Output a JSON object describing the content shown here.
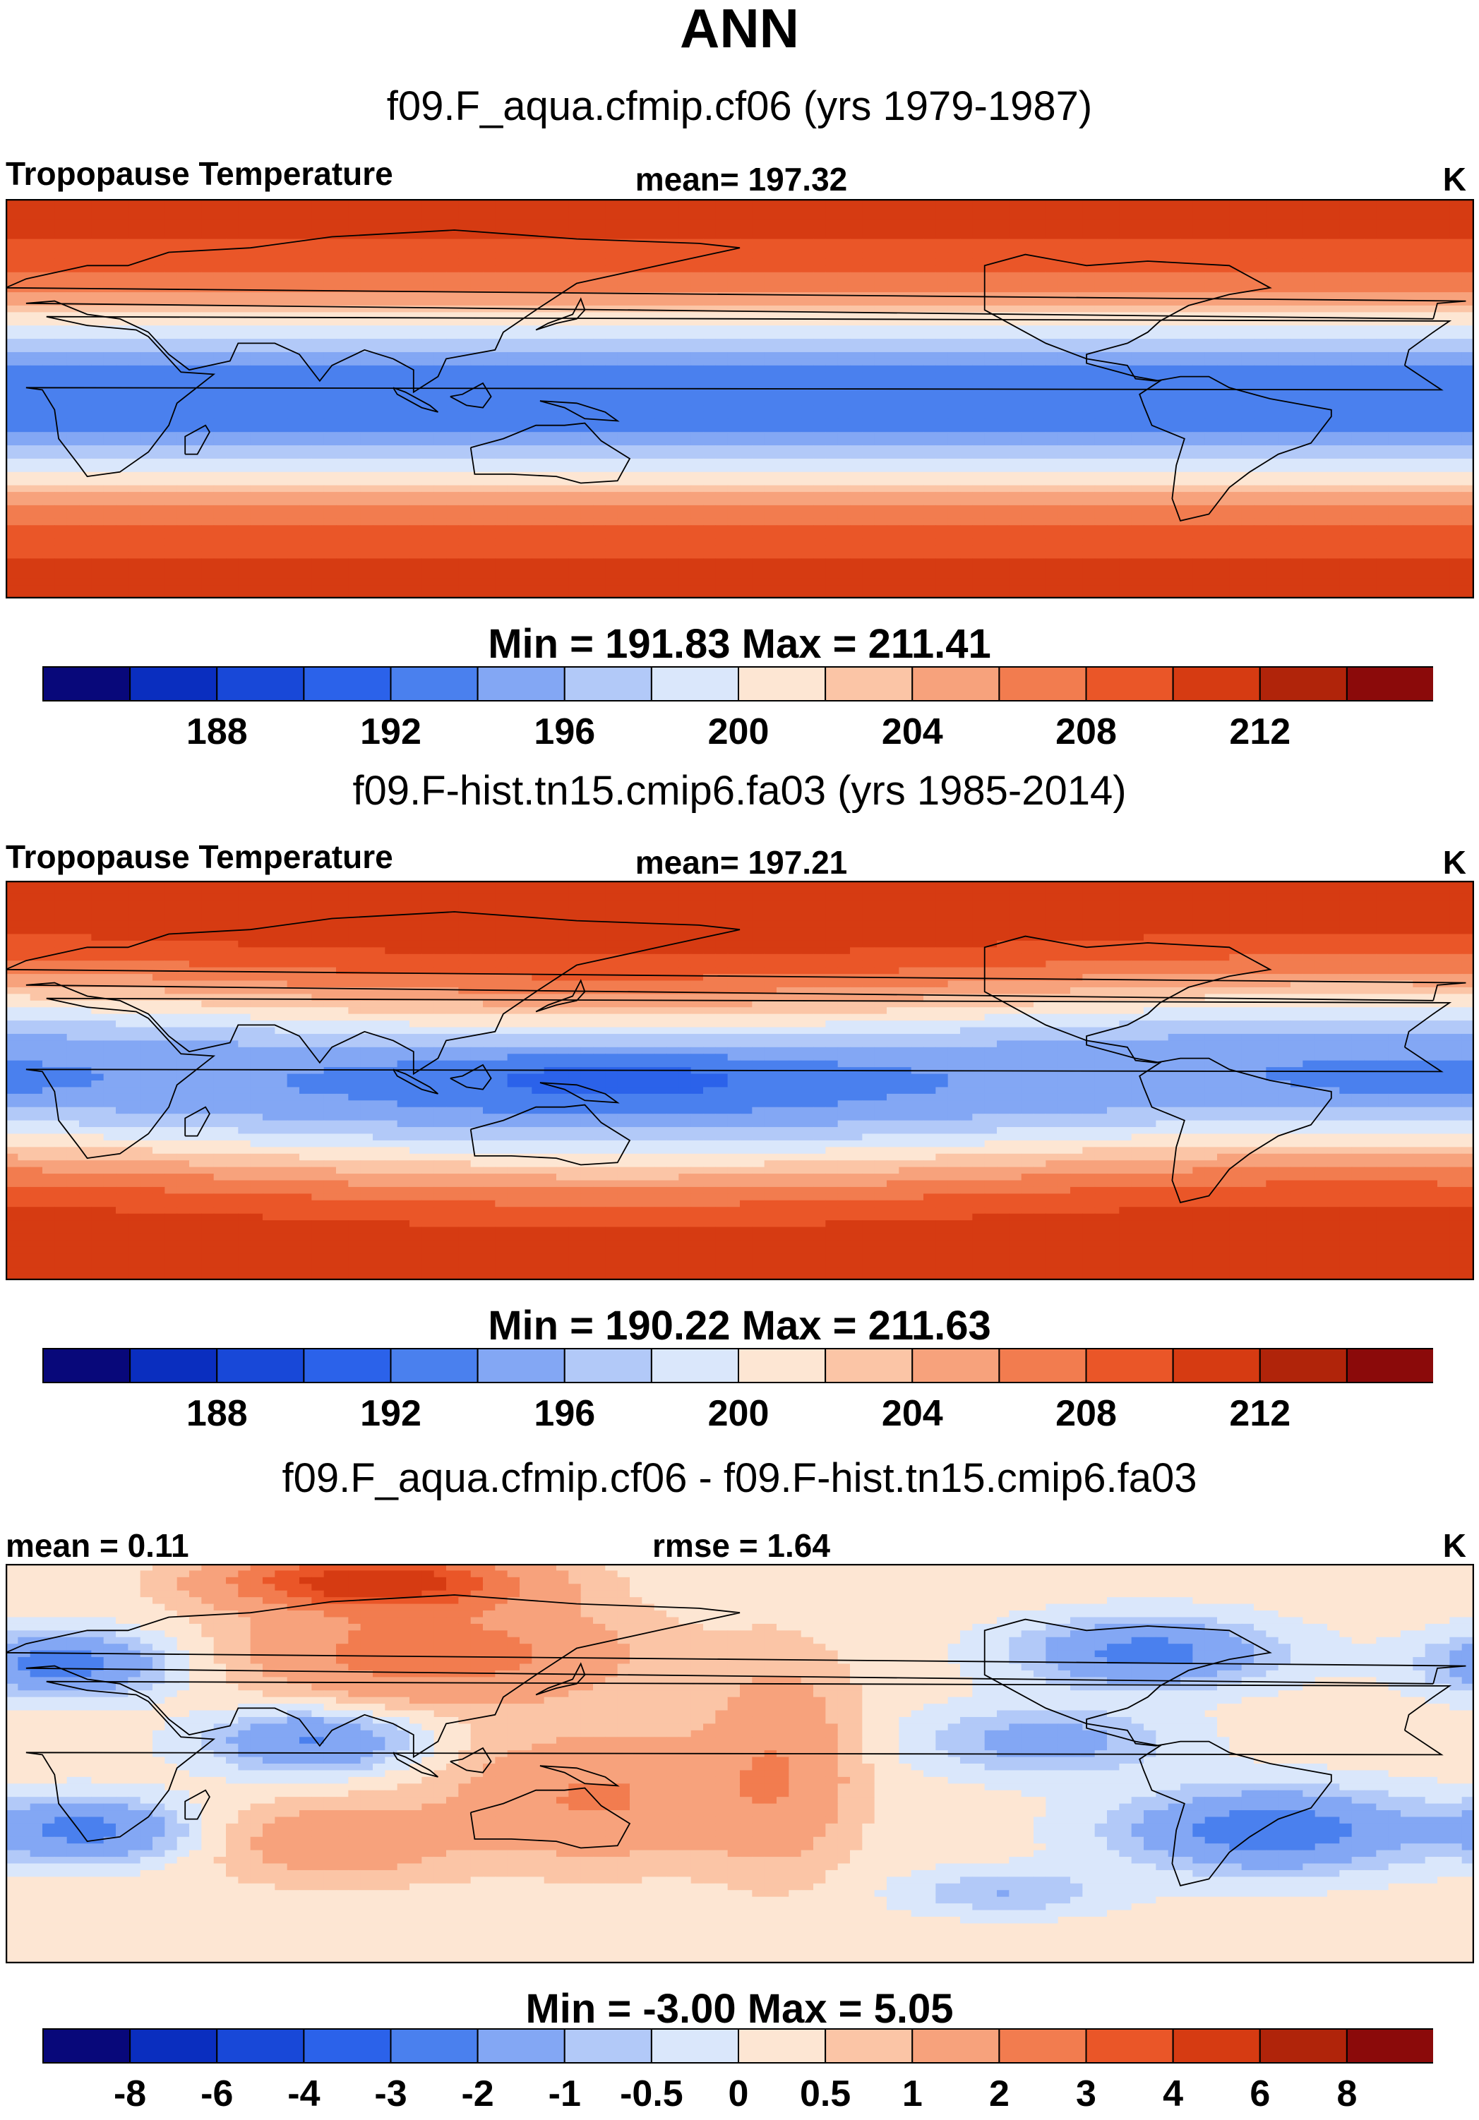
{
  "figure": {
    "title": "ANN",
    "units": "K"
  },
  "palette": [
    "#08087a",
    "#0a2ebf",
    "#1848d8",
    "#2b62ea",
    "#4a80ee",
    "#83a7f4",
    "#b2c9f8",
    "#dae7fb",
    "#fde6d3",
    "#fbc5a6",
    "#f7a27c",
    "#f27c4f",
    "#ea5628",
    "#d63b12",
    "#b0240a",
    "#8b0a0a"
  ],
  "land_outline": "continent-outline",
  "chart_data": [
    {
      "type": "heatmap",
      "case": "f09.F_aqua.cfmip.cf06 (yrs 1979-1987)",
      "variable": "Tropopause Temperature",
      "mean_label": "mean= 197.32",
      "units": "K",
      "min_max": "Min = 191.83 Max = 211.41",
      "min": 191.83,
      "max": 211.41,
      "mean": 197.32,
      "lon_range": [
        0,
        360
      ],
      "lat_range": [
        -90,
        90
      ],
      "colorbar_levels": [
        "188",
        "192",
        "196",
        "200",
        "204",
        "208",
        "212"
      ],
      "colorbar_level_values": [
        186,
        188,
        190,
        192,
        194,
        196,
        198,
        200,
        202,
        204,
        206,
        208,
        210,
        212,
        214
      ],
      "field": "zonal"
    },
    {
      "type": "heatmap",
      "case": "f09.F-hist.tn15.cmip6.fa03 (yrs 1985-2014)",
      "variable": "Tropopause Temperature",
      "mean_label": "mean= 197.21",
      "units": "K",
      "min_max": "Min = 190.22 Max = 211.63",
      "min": 190.22,
      "max": 211.63,
      "mean": 197.21,
      "lon_range": [
        0,
        360
      ],
      "lat_range": [
        -90,
        90
      ],
      "colorbar_levels": [
        "188",
        "192",
        "196",
        "200",
        "204",
        "208",
        "212"
      ],
      "colorbar_level_values": [
        186,
        188,
        190,
        192,
        194,
        196,
        198,
        200,
        202,
        204,
        206,
        208,
        210,
        212,
        214
      ],
      "field": "observed"
    },
    {
      "type": "heatmap",
      "case": "f09.F_aqua.cfmip.cf06 - f09.F-hist.tn15.cmip6.fa03",
      "mean_label": "mean =   0.11",
      "rmse_label": "rmse =   1.64",
      "units": "K",
      "min_max": "Min =  -3.00 Max =    5.05",
      "min": -3.0,
      "max": 5.05,
      "mean": 0.11,
      "rmse": 1.64,
      "lon_range": [
        0,
        360
      ],
      "lat_range": [
        -90,
        90
      ],
      "colorbar_levels": [
        "-8",
        "-6",
        "-4",
        "-3",
        "-2",
        "-1",
        "-0.5",
        "0",
        "0.5",
        "1",
        "2",
        "3",
        "4",
        "6",
        "8"
      ],
      "colorbar_level_values": [
        -8,
        -6,
        -4,
        -3,
        -2,
        -1,
        -0.5,
        0,
        0.5,
        1,
        2,
        3,
        4,
        6,
        8
      ],
      "field": "difference"
    }
  ]
}
